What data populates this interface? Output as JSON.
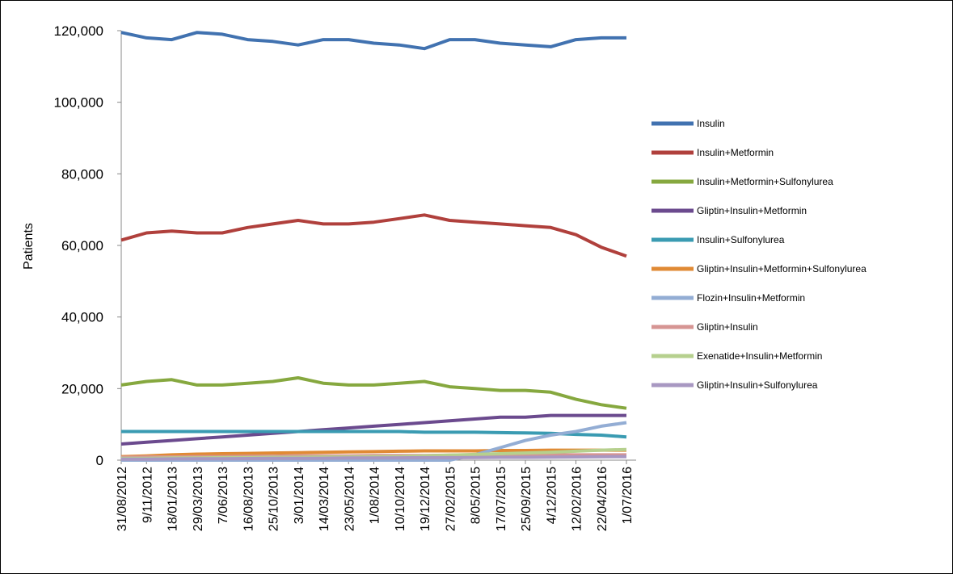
{
  "chart_data": {
    "type": "line",
    "y_label": "Patients",
    "categories": [
      "31/08/2012",
      "9/11/2012",
      "18/01/2013",
      "29/03/2013",
      "7/06/2013",
      "16/08/2013",
      "25/10/2013",
      "3/01/2014",
      "14/03/2014",
      "23/05/2014",
      "1/08/2014",
      "10/10/2014",
      "19/12/2014",
      "27/02/2015",
      "8/05/2015",
      "17/07/2015",
      "25/09/2015",
      "4/12/2015",
      "12/02/2016",
      "22/04/2016",
      "1/07/2016"
    ],
    "ylim": [
      0,
      120000
    ],
    "yticks": [
      0,
      {
        "value": 20000,
        "label": "20,000"
      },
      {
        "value": 40000,
        "label": "40,000"
      },
      {
        "value": 60000,
        "label": "60,000"
      },
      {
        "value": 80000,
        "label": "80,000"
      },
      {
        "value": 100000,
        "label": "100,000"
      },
      {
        "value": 120000,
        "label": "120,000"
      }
    ],
    "series": [
      {
        "name": "Insulin",
        "color": "#4172b0",
        "values": [
          119500,
          118000,
          117500,
          119500,
          119000,
          117500,
          117000,
          116000,
          117500,
          117500,
          116500,
          116000,
          115000,
          117500,
          117500,
          116500,
          116000,
          115500,
          117500,
          118000,
          118000
        ]
      },
      {
        "name": "Insulin+Metformin",
        "color": "#b0403c",
        "values": [
          61500,
          63500,
          64000,
          63500,
          63500,
          65000,
          66000,
          67000,
          66000,
          66000,
          66500,
          67500,
          68500,
          67000,
          66500,
          66000,
          65500,
          65000,
          63000,
          59500,
          57000
        ]
      },
      {
        "name": "Insulin+Metformin+Sulfonylurea",
        "color": "#86a83f",
        "values": [
          21000,
          22000,
          22500,
          21000,
          21000,
          21500,
          22000,
          23000,
          21500,
          21000,
          21000,
          21500,
          22000,
          20500,
          20000,
          19500,
          19500,
          19000,
          17000,
          15500,
          14500
        ]
      },
      {
        "name": "Gliptin+Insulin+Metformin",
        "color": "#6b4a8e",
        "values": [
          4500,
          5000,
          5500,
          6000,
          6500,
          7000,
          7500,
          8000,
          8500,
          9000,
          9500,
          10000,
          10500,
          11000,
          11500,
          12000,
          12000,
          12500,
          12500,
          12500,
          12500
        ]
      },
      {
        "name": "Insulin+Sulfonylurea",
        "color": "#3a9bb2",
        "values": [
          8000,
          8000,
          8000,
          8000,
          8000,
          8000,
          8000,
          8000,
          8000,
          8000,
          8000,
          8000,
          7800,
          7800,
          7800,
          7700,
          7600,
          7500,
          7200,
          7000,
          6500
        ]
      },
      {
        "name": "Gliptin+Insulin+Metformin+Sulfonylurea",
        "color": "#e08a35",
        "values": [
          1000,
          1200,
          1500,
          1700,
          1800,
          1900,
          2000,
          2100,
          2200,
          2300,
          2400,
          2500,
          2600,
          2600,
          2600,
          2700,
          2700,
          2800,
          2800,
          2800,
          2800
        ]
      },
      {
        "name": "Flozin+Insulin+Metformin",
        "color": "#93add4",
        "values": [
          0,
          0,
          0,
          0,
          0,
          0,
          0,
          0,
          0,
          0,
          0,
          0,
          0,
          0,
          1500,
          3500,
          5500,
          7000,
          8000,
          9500,
          10500
        ]
      },
      {
        "name": "Gliptin+Insulin",
        "color": "#d69593",
        "values": [
          800,
          900,
          900,
          1000,
          1000,
          1100,
          1100,
          1200,
          1200,
          1200,
          1300,
          1300,
          1300,
          1400,
          1400,
          1400,
          1500,
          1500,
          1500,
          1500,
          1500
        ]
      },
      {
        "name": "Exenatide+Insulin+Metformin",
        "color": "#b6d08e",
        "values": [
          500,
          500,
          600,
          600,
          700,
          700,
          800,
          800,
          900,
          900,
          1000,
          1000,
          1200,
          1400,
          1600,
          1800,
          2000,
          2200,
          2500,
          2800,
          3000
        ]
      },
      {
        "name": "Gliptin+Insulin+Sulfonylurea",
        "color": "#a898c2",
        "values": [
          300,
          300,
          350,
          400,
          400,
          450,
          500,
          500,
          550,
          600,
          600,
          650,
          700,
          700,
          750,
          800,
          800,
          850,
          900,
          950,
          1000
        ]
      }
    ]
  }
}
